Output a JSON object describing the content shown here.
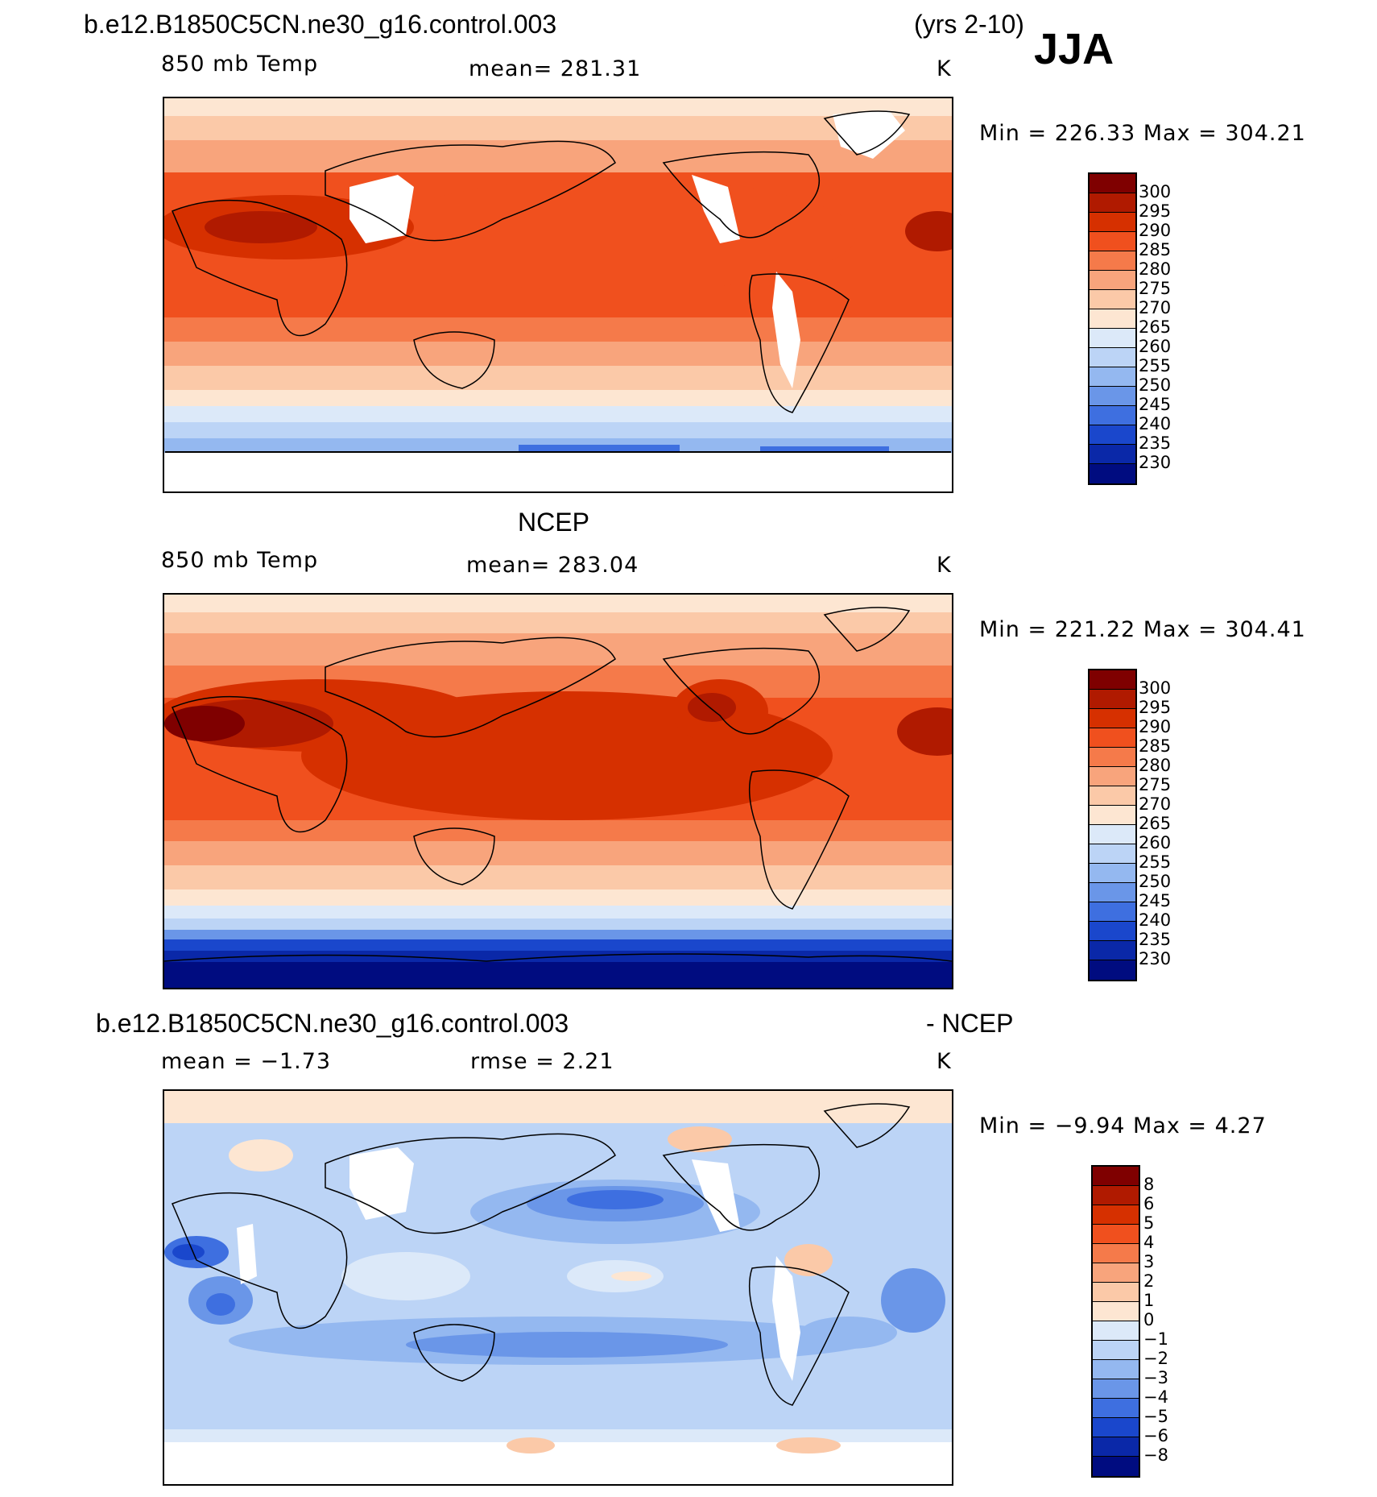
{
  "header": {
    "case_name": "b.e12.B1850C5CN.ne30_g16.control.003",
    "years": "(yrs 2-10)",
    "season": "JJA"
  },
  "panels": [
    {
      "title": "",
      "variable": "850 mb Temp",
      "mean_text": "mean= 281.31",
      "units": "K",
      "min_max": "Min = 226.33 Max = 304.21",
      "colorbar_labels": [
        "300",
        "295",
        "290",
        "285",
        "280",
        "275",
        "270",
        "265",
        "260",
        "255",
        "250",
        "245",
        "240",
        "235",
        "230"
      ]
    },
    {
      "title": "NCEP",
      "variable": "850 mb Temp",
      "mean_text": "mean= 283.04",
      "units": "K",
      "min_max": "Min = 221.22 Max = 304.41",
      "colorbar_labels": [
        "300",
        "295",
        "290",
        "285",
        "280",
        "275",
        "270",
        "265",
        "260",
        "255",
        "250",
        "245",
        "240",
        "235",
        "230"
      ]
    },
    {
      "title_left": "b.e12.B1850C5CN.ne30_g16.control.003",
      "title_right": "- NCEP",
      "mean_text": "mean =   −1.73",
      "rmse_text": "rmse =    2.21",
      "units": "K",
      "min_max": "Min =   −9.94 Max =    4.27",
      "colorbar_labels": [
        "8",
        "6",
        "5",
        "4",
        "3",
        "2",
        "1",
        "0",
        "−1",
        "−2",
        "−3",
        "−4",
        "−5",
        "−6",
        "−8"
      ]
    }
  ],
  "colors": {
    "temp_scale": [
      "#7f0000",
      "#b01a00",
      "#d63000",
      "#f0501e",
      "#f57a4a",
      "#f8a47c",
      "#fbc9a8",
      "#fde6d2",
      "#dce9f9",
      "#bcd4f6",
      "#94b8f0",
      "#6a96e8",
      "#3e6fe0",
      "#1a47cc",
      "#0a28a8",
      "#000c80"
    ],
    "diff_scale": [
      "#7f0000",
      "#b01a00",
      "#d63000",
      "#f0501e",
      "#f57a4a",
      "#f8a47c",
      "#fbc9a8",
      "#fde6d2",
      "#dce9f9",
      "#bcd4f6",
      "#94b8f0",
      "#6a96e8",
      "#3e6fe0",
      "#1a47cc",
      "#0a28a8",
      "#000c80"
    ],
    "missing": "#ffffff"
  }
}
